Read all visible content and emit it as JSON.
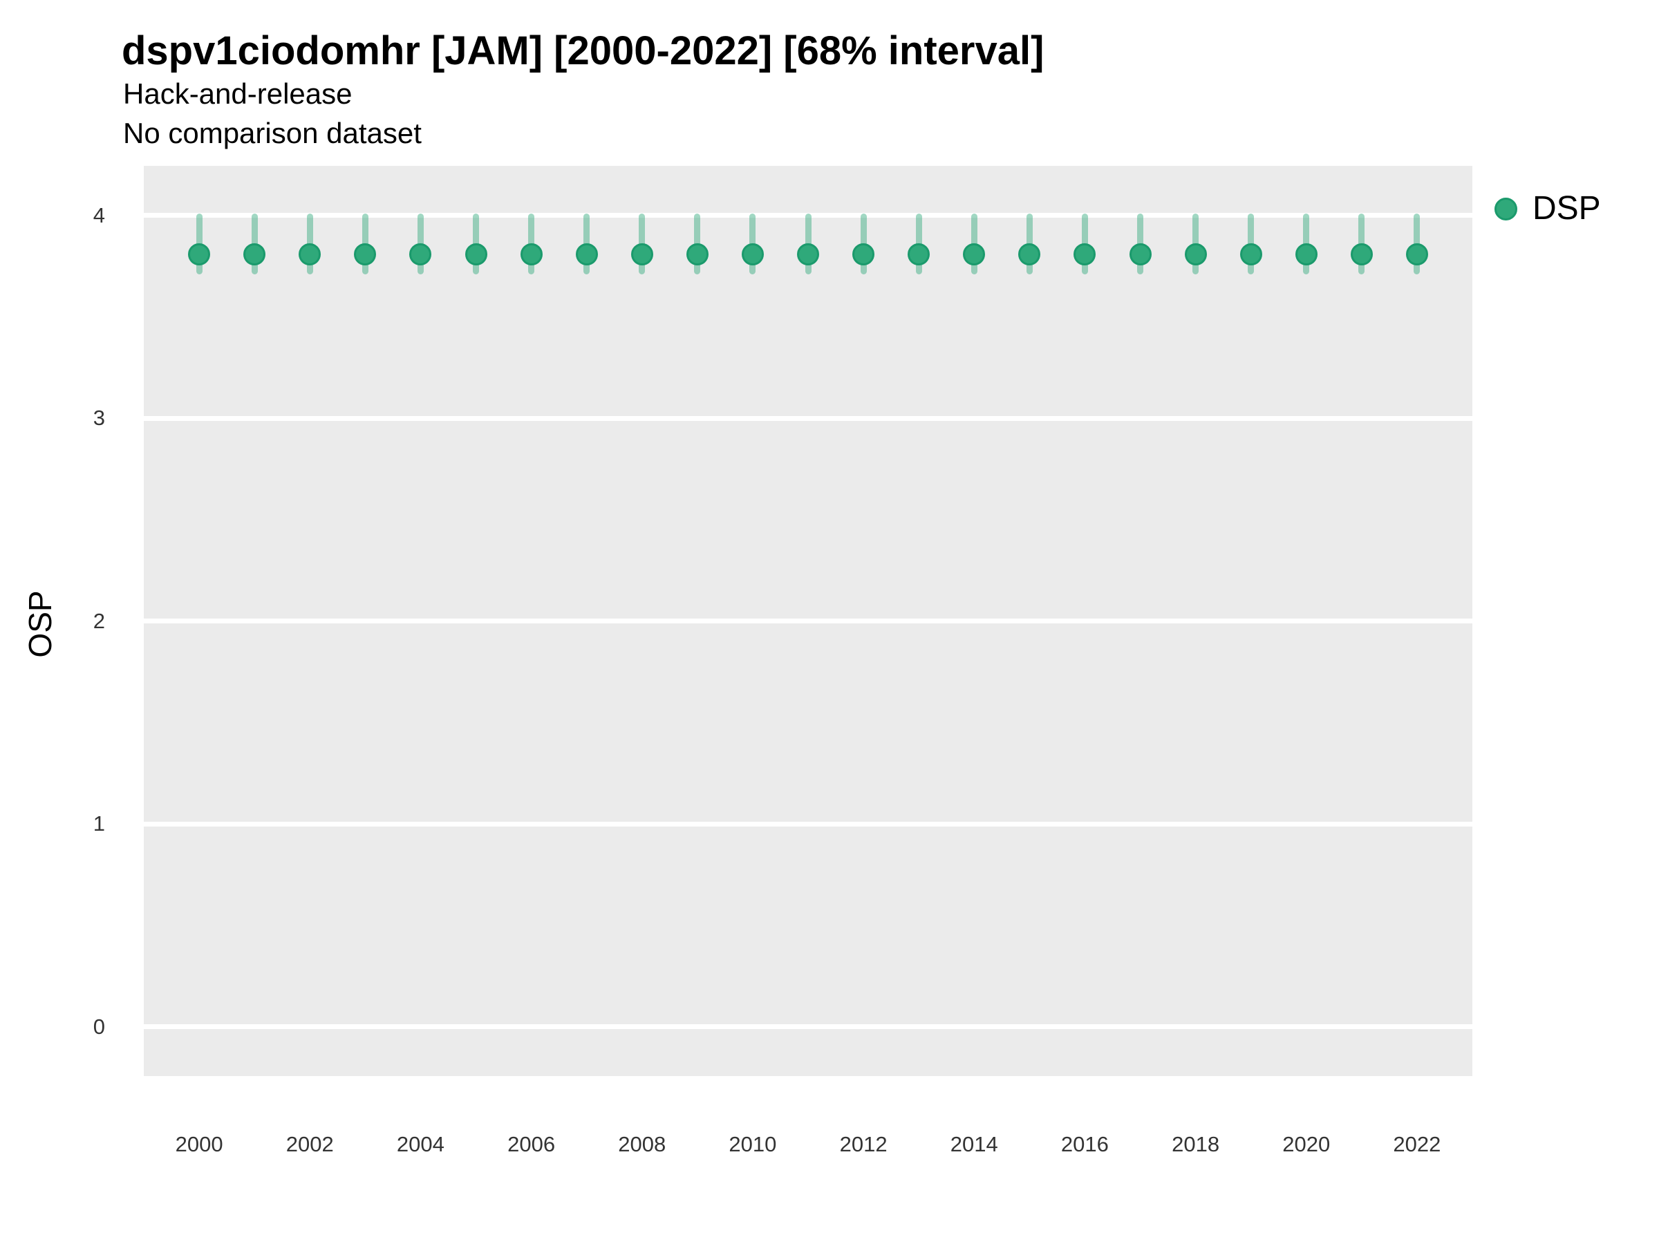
{
  "header": {
    "title": "dspv1ciodomhr [JAM] [2000-2022] [68% interval]",
    "subtitle_line1": "Hack-and-release",
    "subtitle_line2": "No comparison dataset"
  },
  "legend": {
    "entries": [
      {
        "label": "DSP",
        "marker": "circle-icon"
      }
    ]
  },
  "axes": {
    "y_label": "OSP",
    "y_ticks": [
      4,
      3,
      2,
      1,
      0
    ],
    "x_ticks": [
      2000,
      2002,
      2004,
      2006,
      2008,
      2010,
      2012,
      2014,
      2016,
      2018,
      2020,
      2022
    ]
  },
  "colors": {
    "point_fill": "#2fa97a",
    "point_border": "#1b9a6c",
    "interval_bar": "rgba(47,169,122,0.45)",
    "panel_background": "#ebebeb",
    "gridline": "#ffffff",
    "tick_text": "#333333",
    "title_text": "#000000"
  },
  "chart_data": {
    "type": "scatter",
    "title": "dspv1ciodomhr [JAM] [2000-2022] [68% interval]",
    "subtitle": [
      "Hack-and-release",
      "No comparison dataset"
    ],
    "xlabel": "",
    "ylabel": "OSP",
    "xlim": [
      1999,
      2023
    ],
    "ylim": [
      -0.25,
      4.25
    ],
    "x_tick_labels": [
      2000,
      2002,
      2004,
      2006,
      2008,
      2010,
      2012,
      2014,
      2016,
      2018,
      2020,
      2022
    ],
    "y_tick_labels": [
      0,
      1,
      2,
      3,
      4
    ],
    "grid": "major-horizontal, white on gray panel",
    "legend_position": "right-top",
    "interval_note": "68% interval error bars",
    "series": [
      {
        "name": "DSP",
        "x": [
          2000,
          2001,
          2002,
          2003,
          2004,
          2005,
          2006,
          2007,
          2008,
          2009,
          2010,
          2011,
          2012,
          2013,
          2014,
          2015,
          2016,
          2017,
          2018,
          2019,
          2020,
          2021,
          2022
        ],
        "y": [
          3.81,
          3.81,
          3.81,
          3.81,
          3.81,
          3.81,
          3.81,
          3.81,
          3.81,
          3.81,
          3.81,
          3.81,
          3.81,
          3.81,
          3.81,
          3.81,
          3.81,
          3.81,
          3.81,
          3.81,
          3.81,
          3.81,
          3.81
        ],
        "y_lo": [
          3.71,
          3.71,
          3.71,
          3.71,
          3.71,
          3.71,
          3.71,
          3.71,
          3.71,
          3.71,
          3.71,
          3.71,
          3.71,
          3.71,
          3.71,
          3.71,
          3.71,
          3.71,
          3.71,
          3.71,
          3.71,
          3.71,
          3.71
        ],
        "y_hi": [
          4.01,
          4.01,
          4.01,
          4.01,
          4.01,
          4.01,
          4.01,
          4.01,
          4.01,
          4.01,
          4.01,
          4.01,
          4.01,
          4.01,
          4.01,
          4.01,
          4.01,
          4.01,
          4.01,
          4.01,
          4.01,
          4.01,
          4.01
        ]
      }
    ]
  }
}
